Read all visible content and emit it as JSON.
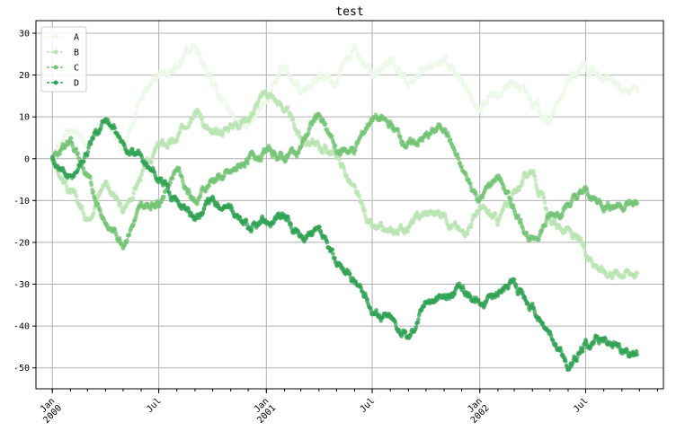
{
  "chart_data": {
    "type": "scatter",
    "title": "test",
    "xlabel": "",
    "ylabel": "",
    "x_range": [
      "2000-01-01",
      "2002-09-27"
    ],
    "xlim": [
      "1999-12-04",
      "2002-11-11"
    ],
    "ylim": [
      -55,
      33
    ],
    "yticks": [
      -50,
      -40,
      -30,
      -20,
      -10,
      0,
      10,
      20,
      30
    ],
    "xticks_major": [
      {
        "date": "2000-01-01",
        "label": "Jan\n2000"
      },
      {
        "date": "2000-07-01",
        "label": "Jul"
      },
      {
        "date": "2001-01-01",
        "label": "Jan\n2001"
      },
      {
        "date": "2001-07-01",
        "label": "Jul"
      },
      {
        "date": "2002-01-01",
        "label": "Jan\n2002"
      },
      {
        "date": "2002-07-01",
        "label": "Jul"
      }
    ],
    "grid": true,
    "legend_position": "top-left",
    "series": [
      {
        "name": "A",
        "color": "#edf8e9",
        "points": [
          [
            "2000-01-01",
            0
          ],
          [
            "2000-02-01",
            8
          ],
          [
            "2000-03-01",
            3
          ],
          [
            "2000-04-01",
            10
          ],
          [
            "2000-05-01",
            2
          ],
          [
            "2000-06-01",
            15
          ],
          [
            "2000-07-01",
            20
          ],
          [
            "2000-08-01",
            22
          ],
          [
            "2000-09-01",
            27
          ],
          [
            "2000-10-01",
            18
          ],
          [
            "2000-11-01",
            10
          ],
          [
            "2000-12-01",
            8
          ],
          [
            "2001-01-01",
            14
          ],
          [
            "2001-02-01",
            22
          ],
          [
            "2001-03-01",
            15
          ],
          [
            "2001-04-01",
            20
          ],
          [
            "2001-05-01",
            18
          ],
          [
            "2001-06-01",
            27
          ],
          [
            "2001-07-01",
            20
          ],
          [
            "2001-08-01",
            23
          ],
          [
            "2001-09-01",
            18
          ],
          [
            "2001-10-01",
            22
          ],
          [
            "2001-11-01",
            24
          ],
          [
            "2001-12-01",
            18
          ],
          [
            "2002-01-01",
            12
          ],
          [
            "2002-02-01",
            16
          ],
          [
            "2002-03-01",
            18
          ],
          [
            "2002-04-01",
            14
          ],
          [
            "2002-05-01",
            9
          ],
          [
            "2002-06-01",
            18
          ],
          [
            "2002-07-01",
            22
          ],
          [
            "2002-08-01",
            19
          ],
          [
            "2002-09-27",
            16
          ]
        ]
      },
      {
        "name": "B",
        "color": "#bae4b3",
        "points": [
          [
            "2000-01-01",
            0
          ],
          [
            "2000-02-01",
            -8
          ],
          [
            "2000-03-01",
            -14
          ],
          [
            "2000-04-01",
            -5
          ],
          [
            "2000-05-01",
            -13
          ],
          [
            "2000-06-01",
            -4
          ],
          [
            "2000-07-01",
            3
          ],
          [
            "2000-08-01",
            4
          ],
          [
            "2000-09-01",
            13
          ],
          [
            "2000-10-01",
            5
          ],
          [
            "2000-11-01",
            8
          ],
          [
            "2000-12-01",
            10
          ],
          [
            "2001-01-01",
            16
          ],
          [
            "2001-02-01",
            12
          ],
          [
            "2001-03-01",
            5
          ],
          [
            "2001-04-01",
            3
          ],
          [
            "2001-05-01",
            1
          ],
          [
            "2001-06-01",
            -8
          ],
          [
            "2001-07-01",
            -17
          ],
          [
            "2001-08-01",
            -18
          ],
          [
            "2001-09-01",
            -16
          ],
          [
            "2001-10-01",
            -13
          ],
          [
            "2001-11-01",
            -13
          ],
          [
            "2001-12-01",
            -18
          ],
          [
            "2002-01-01",
            -12
          ],
          [
            "2002-02-01",
            -15
          ],
          [
            "2002-03-01",
            -8
          ],
          [
            "2002-04-01",
            -2
          ],
          [
            "2002-05-01",
            -15
          ],
          [
            "2002-06-01",
            -17
          ],
          [
            "2002-07-01",
            -22
          ],
          [
            "2002-08-01",
            -27
          ],
          [
            "2002-09-27",
            -27
          ]
        ]
      },
      {
        "name": "C",
        "color": "#74c476",
        "points": [
          [
            "2000-01-01",
            0
          ],
          [
            "2000-02-01",
            5
          ],
          [
            "2000-03-01",
            -5
          ],
          [
            "2000-04-01",
            -15
          ],
          [
            "2000-05-01",
            -20
          ],
          [
            "2000-06-01",
            -12
          ],
          [
            "2000-07-01",
            -10
          ],
          [
            "2000-08-01",
            -2
          ],
          [
            "2000-09-01",
            -10
          ],
          [
            "2000-10-01",
            -5
          ],
          [
            "2000-11-01",
            -4
          ],
          [
            "2000-12-01",
            0
          ],
          [
            "2001-01-01",
            2
          ],
          [
            "2001-02-01",
            0
          ],
          [
            "2001-03-01",
            3
          ],
          [
            "2001-04-01",
            11
          ],
          [
            "2001-05-01",
            2
          ],
          [
            "2001-06-01",
            2
          ],
          [
            "2001-07-01",
            10
          ],
          [
            "2001-08-01",
            8
          ],
          [
            "2001-09-01",
            3
          ],
          [
            "2001-10-01",
            5
          ],
          [
            "2001-11-01",
            8
          ],
          [
            "2001-12-01",
            -3
          ],
          [
            "2002-01-01",
            -10
          ],
          [
            "2002-02-01",
            -4
          ],
          [
            "2002-03-01",
            -12
          ],
          [
            "2002-04-01",
            -20
          ],
          [
            "2002-05-01",
            -14
          ],
          [
            "2002-06-01",
            -11
          ],
          [
            "2002-07-01",
            -8
          ],
          [
            "2002-08-01",
            -11
          ],
          [
            "2002-09-27",
            -11
          ]
        ]
      },
      {
        "name": "D",
        "color": "#31a354",
        "points": [
          [
            "2000-01-01",
            0
          ],
          [
            "2000-02-01",
            -5
          ],
          [
            "2000-03-01",
            2
          ],
          [
            "2000-04-01",
            10
          ],
          [
            "2000-05-01",
            3
          ],
          [
            "2000-06-01",
            0
          ],
          [
            "2000-07-01",
            -5
          ],
          [
            "2000-08-01",
            -10
          ],
          [
            "2000-09-01",
            -14
          ],
          [
            "2000-10-01",
            -10
          ],
          [
            "2000-11-01",
            -12
          ],
          [
            "2000-12-01",
            -17
          ],
          [
            "2001-01-01",
            -15
          ],
          [
            "2001-02-01",
            -14
          ],
          [
            "2001-03-01",
            -19
          ],
          [
            "2001-04-01",
            -18
          ],
          [
            "2001-05-01",
            -25
          ],
          [
            "2001-06-01",
            -29
          ],
          [
            "2001-07-01",
            -36
          ],
          [
            "2001-08-01",
            -38
          ],
          [
            "2001-09-01",
            -43
          ],
          [
            "2001-10-01",
            -34
          ],
          [
            "2001-11-01",
            -33
          ],
          [
            "2001-12-01",
            -31
          ],
          [
            "2002-01-01",
            -34
          ],
          [
            "2002-02-01",
            -32
          ],
          [
            "2002-03-01",
            -30
          ],
          [
            "2002-04-01",
            -36
          ],
          [
            "2002-05-01",
            -42
          ],
          [
            "2002-06-01",
            -50
          ],
          [
            "2002-07-01",
            -44
          ],
          [
            "2002-08-01",
            -43
          ],
          [
            "2002-09-27",
            -47
          ]
        ]
      }
    ]
  }
}
